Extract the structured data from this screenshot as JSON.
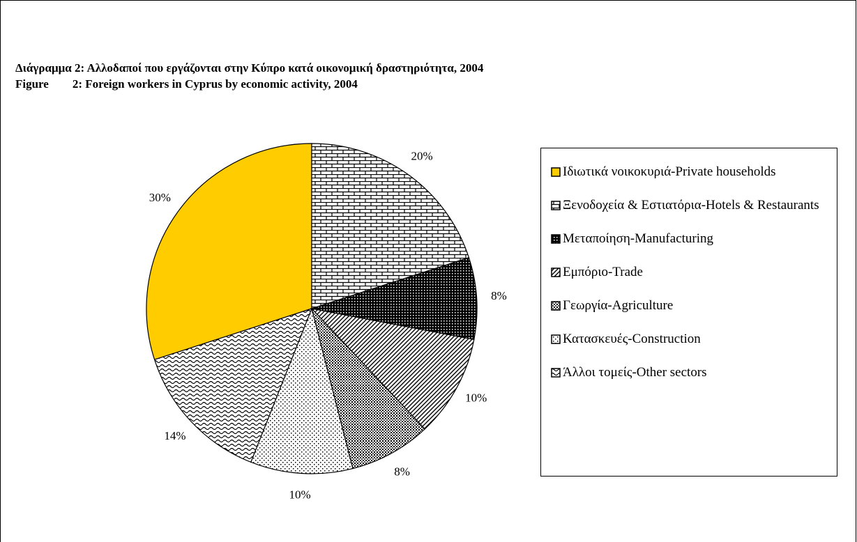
{
  "chart_data": {
    "type": "pie",
    "title": "Διάγραμμα 2: Αλλοδαποί που εργάζονται στην Κύπρο κατά οικονομική δραστηριότητα, 2004",
    "subtitle": "Figure        2: Foreign workers in Cyprus by economic activity, 2004",
    "categories": [
      "Ιδιωτικά νοικοκυριά-Private households",
      "Ξενοδοχεία & Εστιατόρια-Hotels & Restaurants",
      "Μεταποίηση-Manufacturing",
      "Εμπόριο-Trade",
      "Γεωργία-Agriculture",
      "Κατασκευές-Construction",
      "Άλλοι τομείς-Other sectors"
    ],
    "values": [
      30,
      20,
      8,
      10,
      8,
      10,
      14
    ],
    "value_labels": [
      "30%",
      "20%",
      "8%",
      "10%",
      "8%",
      "10%",
      "14%"
    ],
    "colors": [
      "#ffcc00",
      "#ffffff",
      "#ffffff",
      "#ffffff",
      "#ffffff",
      "#ffffff",
      "#ffffff"
    ],
    "legend": "right"
  }
}
